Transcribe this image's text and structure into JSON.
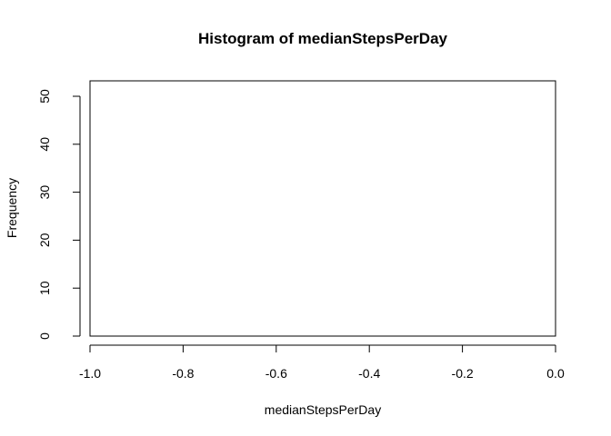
{
  "chart_data": {
    "type": "bar",
    "title": "Histogram of medianStepsPerDay",
    "xlabel": "medianStepsPerDay",
    "ylabel": "Frequency",
    "xlim": [
      -1.0,
      0.0
    ],
    "ylim": [
      0,
      53
    ],
    "x_ticks": [
      -1.0,
      -0.8,
      -0.6,
      -0.4,
      -0.2,
      0.0
    ],
    "x_tick_labels": [
      "-1.0",
      "-0.8",
      "-0.6",
      "-0.4",
      "-0.2",
      "0.0"
    ],
    "y_ticks": [
      0,
      10,
      20,
      30,
      40,
      50
    ],
    "y_tick_labels": [
      "0",
      "10",
      "20",
      "30",
      "40",
      "50"
    ],
    "bins": [],
    "counts": [],
    "grid": false
  }
}
